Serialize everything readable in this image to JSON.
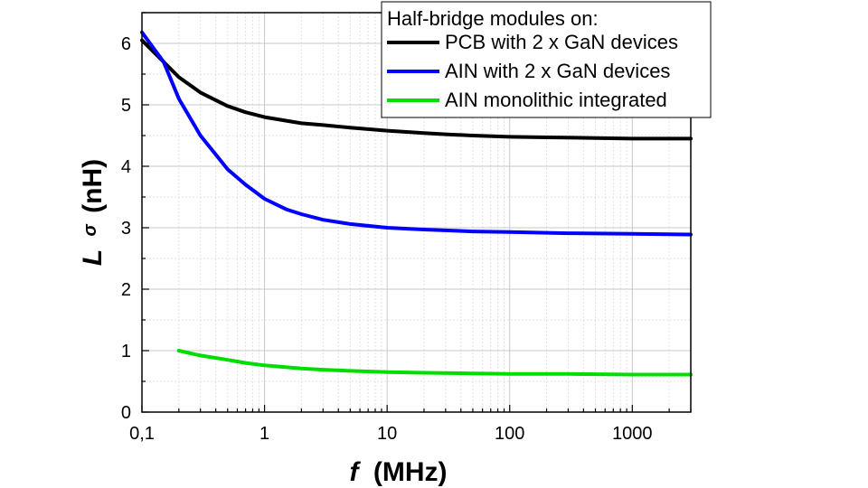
{
  "chart_data": {
    "type": "line",
    "xlabel": "f (MHz)",
    "xlabel_var": "f",
    "xlabel_unit": "(MHz)",
    "ylabel_var": "L",
    "ylabel_sub": "σ",
    "ylabel_unit": "(nH)",
    "x_scale": "log",
    "xlim": [
      0.1,
      3000
    ],
    "ylim": [
      0,
      6.5
    ],
    "x_tick_labels": [
      "0,1",
      "1",
      "10",
      "100",
      "1000"
    ],
    "x_tick_values": [
      0.1,
      1,
      10,
      100,
      1000
    ],
    "y_tick_values": [
      0,
      1,
      2,
      3,
      4,
      5,
      6
    ],
    "y_tick_labels": [
      "0",
      "1",
      "2",
      "3",
      "4",
      "5",
      "6"
    ],
    "grid": true,
    "legend": {
      "title": "Half-bridge modules on:",
      "placement": "top-right"
    },
    "series": [
      {
        "name": "PCB with 2 x GaN devices",
        "color": "#000000",
        "x": [
          0.1,
          0.15,
          0.2,
          0.3,
          0.5,
          0.7,
          1,
          2,
          3,
          5,
          10,
          20,
          30,
          50,
          100,
          200,
          500,
          1000,
          3000
        ],
        "y": [
          6.05,
          5.7,
          5.45,
          5.2,
          4.98,
          4.88,
          4.8,
          4.7,
          4.67,
          4.63,
          4.58,
          4.54,
          4.52,
          4.5,
          4.48,
          4.47,
          4.46,
          4.45,
          4.45
        ]
      },
      {
        "name": "AIN with 2 x GaN devices",
        "color": "#0000ff",
        "x": [
          0.1,
          0.15,
          0.2,
          0.3,
          0.5,
          0.7,
          1,
          1.5,
          2,
          3,
          5,
          10,
          20,
          50,
          100,
          300,
          1000,
          3000
        ],
        "y": [
          6.18,
          5.7,
          5.1,
          4.5,
          3.95,
          3.7,
          3.47,
          3.3,
          3.22,
          3.13,
          3.06,
          3.0,
          2.97,
          2.94,
          2.93,
          2.91,
          2.9,
          2.89
        ]
      },
      {
        "name": "AIN monolithic integrated",
        "color": "#00dd00",
        "x": [
          0.2,
          0.3,
          0.5,
          0.7,
          1,
          2,
          3,
          5,
          10,
          20,
          50,
          100,
          300,
          1000,
          3000
        ],
        "y": [
          1.0,
          0.92,
          0.85,
          0.8,
          0.76,
          0.71,
          0.69,
          0.67,
          0.65,
          0.64,
          0.63,
          0.62,
          0.62,
          0.61,
          0.61
        ]
      }
    ]
  }
}
